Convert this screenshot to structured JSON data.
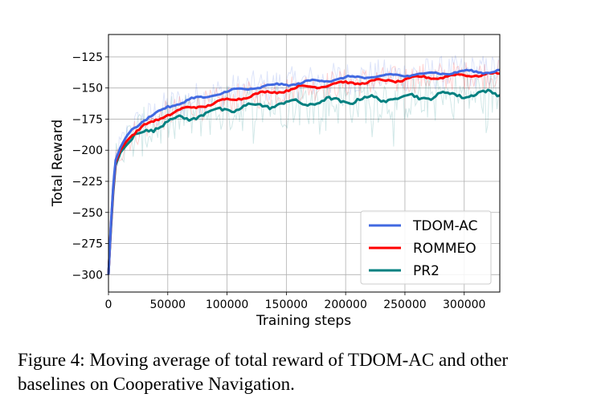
{
  "caption": "Figure 4: Moving average of total reward of TDOM-AC and other baselines on Cooperative Navigation.",
  "chart_data": {
    "type": "line",
    "title": "",
    "xlabel": "Training steps",
    "ylabel": "Total Reward",
    "xlim": [
      0,
      330000
    ],
    "ylim": [
      -314,
      -107
    ],
    "xticks": [
      0,
      50000,
      100000,
      150000,
      200000,
      250000,
      300000
    ],
    "xtick_labels": [
      "0",
      "50000",
      "100000",
      "150000",
      "200000",
      "250000",
      "300000"
    ],
    "yticks": [
      -300,
      -275,
      -250,
      -225,
      -200,
      -175,
      -150,
      -125
    ],
    "ytick_labels": [
      "−300",
      "−275",
      "−250",
      "−225",
      "−200",
      "−175",
      "−150",
      "−125"
    ],
    "grid": true,
    "legend_position": "lower-right",
    "series": [
      {
        "name": "TDOM-AC",
        "color": "#4169e1",
        "x": [
          0,
          3000,
          6000,
          10000,
          15000,
          20000,
          25000,
          30000,
          40000,
          50000,
          60000,
          70000,
          80000,
          90000,
          100000,
          120000,
          140000,
          160000,
          180000,
          200000,
          220000,
          240000,
          260000,
          280000,
          300000,
          315000,
          330000
        ],
        "values": [
          -300,
          -240,
          -208,
          -198,
          -189,
          -183,
          -179,
          -176,
          -171,
          -165,
          -162,
          -159,
          -158,
          -155,
          -153,
          -150,
          -148,
          -146,
          -144,
          -142,
          -141,
          -140,
          -139,
          -138,
          -137,
          -137,
          -136
        ]
      },
      {
        "name": "ROMMEO",
        "color": "#ff0000",
        "x": [
          0,
          3000,
          6000,
          10000,
          15000,
          20000,
          25000,
          30000,
          40000,
          50000,
          60000,
          70000,
          80000,
          90000,
          100000,
          120000,
          140000,
          160000,
          180000,
          200000,
          220000,
          240000,
          260000,
          280000,
          300000,
          315000,
          330000
        ],
        "values": [
          -300,
          -242,
          -210,
          -200,
          -193,
          -188,
          -184,
          -181,
          -176,
          -171,
          -168,
          -166,
          -164,
          -162,
          -160,
          -156,
          -153,
          -150,
          -148,
          -146,
          -145,
          -144,
          -142,
          -141,
          -140,
          -139,
          -139
        ]
      },
      {
        "name": "PR2",
        "color": "#008080",
        "x": [
          0,
          3000,
          6000,
          10000,
          15000,
          20000,
          25000,
          30000,
          40000,
          50000,
          60000,
          70000,
          80000,
          90000,
          100000,
          120000,
          140000,
          160000,
          180000,
          200000,
          220000,
          240000,
          260000,
          280000,
          300000,
          315000,
          330000
        ],
        "values": [
          -300,
          -245,
          -212,
          -202,
          -196,
          -191,
          -188,
          -185,
          -181,
          -177,
          -175,
          -173,
          -171,
          -169,
          -167,
          -165,
          -163,
          -162,
          -161,
          -160,
          -159,
          -158,
          -157,
          -156,
          -155,
          -155,
          -154
        ]
      }
    ]
  }
}
